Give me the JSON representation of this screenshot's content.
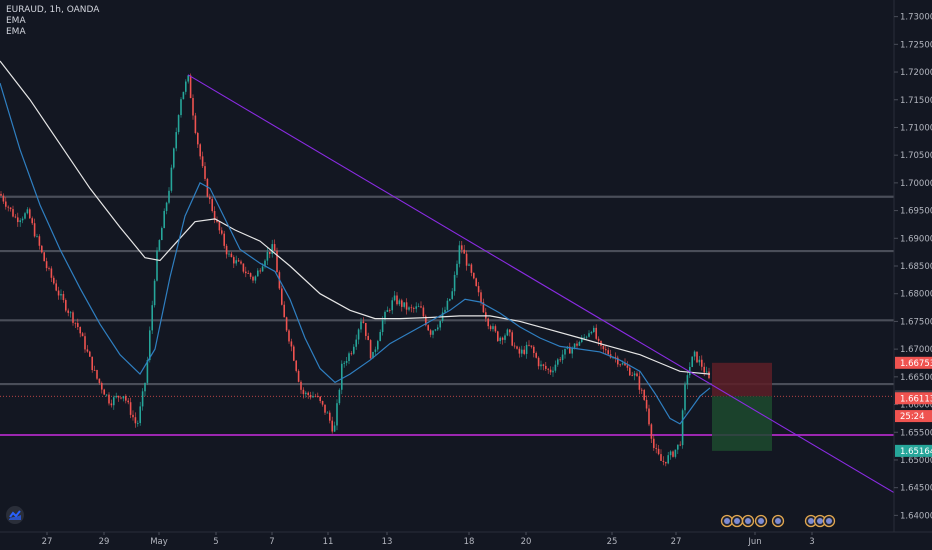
{
  "legend": {
    "symbol": "EURAUD, 1h, OANDA",
    "indicators": [
      "EMA",
      "EMA"
    ]
  },
  "colors": {
    "background": "#131722",
    "up": "#26a69a",
    "down": "#ef5350",
    "ema_fast": "#2f7fc1",
    "ema_slow": "#e6e6e6",
    "trendline": "#8a2be2",
    "support": "#9c27b0",
    "level": "#4a4e59",
    "stop_zone": "#5d1f27",
    "target_zone": "#1d4a2e"
  },
  "chart_data": {
    "type": "candlestick",
    "x_ticks": [
      "27",
      "29",
      "May",
      "5",
      "7",
      "11",
      "13",
      "18",
      "20",
      "25",
      "27",
      "Jun",
      "3"
    ],
    "y_ticks": [
      "1.73000",
      "1.72500",
      "1.72000",
      "1.71500",
      "1.71000",
      "1.70500",
      "1.70000",
      "1.69500",
      "1.69000",
      "1.68500",
      "1.68000",
      "1.67500",
      "1.67000",
      "1.66500",
      "1.66000",
      "1.65500",
      "1.65000",
      "1.64500",
      "1.64000"
    ],
    "ylim": [
      1.637,
      1.733
    ],
    "close_path": [
      [
        0,
        1.698
      ],
      [
        16,
        1.6935
      ],
      [
        28,
        1.6945
      ],
      [
        46,
        1.685
      ],
      [
        60,
        1.6795
      ],
      [
        78,
        1.674
      ],
      [
        96,
        1.665
      ],
      [
        110,
        1.6605
      ],
      [
        123,
        1.662
      ],
      [
        137,
        1.656
      ],
      [
        146,
        1.665
      ],
      [
        156,
        1.686
      ],
      [
        170,
        1.7
      ],
      [
        180,
        1.715
      ],
      [
        188,
        1.719
      ],
      [
        196,
        1.709
      ],
      [
        206,
        1.699
      ],
      [
        216,
        1.693
      ],
      [
        228,
        1.687
      ],
      [
        240,
        1.685
      ],
      [
        254,
        1.6825
      ],
      [
        266,
        1.687
      ],
      [
        274,
        1.6885
      ],
      [
        282,
        1.677
      ],
      [
        292,
        1.67
      ],
      [
        302,
        1.662
      ],
      [
        316,
        1.6615
      ],
      [
        328,
        1.658
      ],
      [
        334,
        1.655
      ],
      [
        342,
        1.667
      ],
      [
        352,
        1.67
      ],
      [
        362,
        1.676
      ],
      [
        372,
        1.668
      ],
      [
        382,
        1.675
      ],
      [
        394,
        1.679
      ],
      [
        410,
        1.677
      ],
      [
        420,
        1.6775
      ],
      [
        430,
        1.673
      ],
      [
        440,
        1.675
      ],
      [
        452,
        1.68
      ],
      [
        460,
        1.689
      ],
      [
        468,
        1.685
      ],
      [
        478,
        1.68
      ],
      [
        488,
        1.675
      ],
      [
        498,
        1.672
      ],
      [
        508,
        1.673
      ],
      [
        518,
        1.669
      ],
      [
        530,
        1.6705
      ],
      [
        540,
        1.667
      ],
      [
        550,
        1.666
      ],
      [
        562,
        1.669
      ],
      [
        574,
        1.6705
      ],
      [
        584,
        1.672
      ],
      [
        592,
        1.674
      ],
      [
        600,
        1.67
      ],
      [
        612,
        1.669
      ],
      [
        624,
        1.667
      ],
      [
        636,
        1.665
      ],
      [
        646,
        1.66
      ],
      [
        654,
        1.652
      ],
      [
        662,
        1.6495
      ],
      [
        672,
        1.651
      ],
      [
        680,
        1.653
      ],
      [
        686,
        1.665
      ],
      [
        694,
        1.669
      ],
      [
        702,
        1.667
      ],
      [
        710,
        1.664
      ]
    ],
    "ema_fast": [
      [
        0,
        1.718
      ],
      [
        20,
        1.706
      ],
      [
        40,
        1.696
      ],
      [
        60,
        1.688
      ],
      [
        80,
        1.681
      ],
      [
        100,
        1.6745
      ],
      [
        120,
        1.669
      ],
      [
        140,
        1.6655
      ],
      [
        155,
        1.67
      ],
      [
        170,
        1.683
      ],
      [
        185,
        1.694
      ],
      [
        200,
        1.7
      ],
      [
        210,
        1.699
      ],
      [
        225,
        1.6935
      ],
      [
        240,
        1.688
      ],
      [
        260,
        1.6855
      ],
      [
        275,
        1.684
      ],
      [
        290,
        1.679
      ],
      [
        305,
        1.672
      ],
      [
        320,
        1.6665
      ],
      [
        335,
        1.664
      ],
      [
        350,
        1.6655
      ],
      [
        370,
        1.668
      ],
      [
        390,
        1.671
      ],
      [
        410,
        1.673
      ],
      [
        430,
        1.675
      ],
      [
        450,
        1.677
      ],
      [
        465,
        1.679
      ],
      [
        480,
        1.6785
      ],
      [
        500,
        1.6765
      ],
      [
        520,
        1.674
      ],
      [
        540,
        1.672
      ],
      [
        560,
        1.6705
      ],
      [
        580,
        1.67
      ],
      [
        600,
        1.6695
      ],
      [
        620,
        1.668
      ],
      [
        640,
        1.666
      ],
      [
        655,
        1.662
      ],
      [
        670,
        1.6575
      ],
      [
        680,
        1.6565
      ],
      [
        690,
        1.659
      ],
      [
        700,
        1.6615
      ],
      [
        710,
        1.663
      ]
    ],
    "ema_slow": [
      [
        0,
        1.722
      ],
      [
        30,
        1.715
      ],
      [
        60,
        1.707
      ],
      [
        90,
        1.699
      ],
      [
        120,
        1.692
      ],
      [
        145,
        1.6865
      ],
      [
        160,
        1.686
      ],
      [
        175,
        1.689
      ],
      [
        195,
        1.693
      ],
      [
        215,
        1.6935
      ],
      [
        235,
        1.6915
      ],
      [
        260,
        1.6895
      ],
      [
        290,
        1.685
      ],
      [
        320,
        1.68
      ],
      [
        350,
        1.677
      ],
      [
        375,
        1.6755
      ],
      [
        400,
        1.6755
      ],
      [
        430,
        1.6757
      ],
      [
        460,
        1.676
      ],
      [
        490,
        1.676
      ],
      [
        520,
        1.675
      ],
      [
        550,
        1.6735
      ],
      [
        580,
        1.672
      ],
      [
        610,
        1.6705
      ],
      [
        640,
        1.669
      ],
      [
        660,
        1.6675
      ],
      [
        680,
        1.666
      ],
      [
        710,
        1.6655
      ]
    ],
    "trendline": [
      [
        188,
        1.7195
      ],
      [
        895,
        1.644
      ]
    ],
    "support_level": 1.6545,
    "horizontal_levels": [
      1.6975,
      1.6877,
      1.6752,
      1.6637
    ],
    "entry_level": 1.6615,
    "position_zone": {
      "entry": 1.6615,
      "stop": 1.66753,
      "target": 1.65164
    },
    "price_tags": [
      {
        "label": "1.66753",
        "value": 1.66753,
        "color": "#ef5350"
      },
      {
        "label": "1.66150",
        "value": 1.6615,
        "color": "#363a45"
      },
      {
        "label": "1.66113",
        "value": 1.66113,
        "color": "#ef5350"
      },
      {
        "label": "25:24",
        "value": 1.65846,
        "color": "#ef5350"
      },
      {
        "label": "1.65164",
        "value": 1.65164,
        "color": "#26a69a"
      }
    ]
  }
}
